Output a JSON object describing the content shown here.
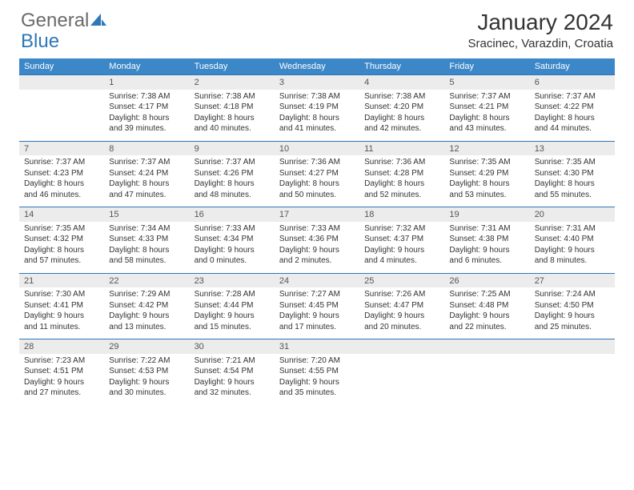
{
  "brand": {
    "part1": "General",
    "part2": "Blue"
  },
  "title": "January 2024",
  "location": "Sracinec, Varazdin, Croatia",
  "colors": {
    "header_bg": "#3b87c8",
    "rule": "#2e77b8",
    "daybar_bg": "#ececec",
    "text": "#333333",
    "logo_gray": "#6b6b6b"
  },
  "weekdays": [
    "Sunday",
    "Monday",
    "Tuesday",
    "Wednesday",
    "Thursday",
    "Friday",
    "Saturday"
  ],
  "weeks": [
    {
      "nums": [
        "",
        "1",
        "2",
        "3",
        "4",
        "5",
        "6"
      ],
      "cells": [
        {
          "empty": true
        },
        {
          "sunrise": "7:38 AM",
          "sunset": "4:17 PM",
          "dl1": "Daylight: 8 hours",
          "dl2": "and 39 minutes."
        },
        {
          "sunrise": "7:38 AM",
          "sunset": "4:18 PM",
          "dl1": "Daylight: 8 hours",
          "dl2": "and 40 minutes."
        },
        {
          "sunrise": "7:38 AM",
          "sunset": "4:19 PM",
          "dl1": "Daylight: 8 hours",
          "dl2": "and 41 minutes."
        },
        {
          "sunrise": "7:38 AM",
          "sunset": "4:20 PM",
          "dl1": "Daylight: 8 hours",
          "dl2": "and 42 minutes."
        },
        {
          "sunrise": "7:37 AM",
          "sunset": "4:21 PM",
          "dl1": "Daylight: 8 hours",
          "dl2": "and 43 minutes."
        },
        {
          "sunrise": "7:37 AM",
          "sunset": "4:22 PM",
          "dl1": "Daylight: 8 hours",
          "dl2": "and 44 minutes."
        }
      ]
    },
    {
      "nums": [
        "7",
        "8",
        "9",
        "10",
        "11",
        "12",
        "13"
      ],
      "cells": [
        {
          "sunrise": "7:37 AM",
          "sunset": "4:23 PM",
          "dl1": "Daylight: 8 hours",
          "dl2": "and 46 minutes."
        },
        {
          "sunrise": "7:37 AM",
          "sunset": "4:24 PM",
          "dl1": "Daylight: 8 hours",
          "dl2": "and 47 minutes."
        },
        {
          "sunrise": "7:37 AM",
          "sunset": "4:26 PM",
          "dl1": "Daylight: 8 hours",
          "dl2": "and 48 minutes."
        },
        {
          "sunrise": "7:36 AM",
          "sunset": "4:27 PM",
          "dl1": "Daylight: 8 hours",
          "dl2": "and 50 minutes."
        },
        {
          "sunrise": "7:36 AM",
          "sunset": "4:28 PM",
          "dl1": "Daylight: 8 hours",
          "dl2": "and 52 minutes."
        },
        {
          "sunrise": "7:35 AM",
          "sunset": "4:29 PM",
          "dl1": "Daylight: 8 hours",
          "dl2": "and 53 minutes."
        },
        {
          "sunrise": "7:35 AM",
          "sunset": "4:30 PM",
          "dl1": "Daylight: 8 hours",
          "dl2": "and 55 minutes."
        }
      ]
    },
    {
      "nums": [
        "14",
        "15",
        "16",
        "17",
        "18",
        "19",
        "20"
      ],
      "cells": [
        {
          "sunrise": "7:35 AM",
          "sunset": "4:32 PM",
          "dl1": "Daylight: 8 hours",
          "dl2": "and 57 minutes."
        },
        {
          "sunrise": "7:34 AM",
          "sunset": "4:33 PM",
          "dl1": "Daylight: 8 hours",
          "dl2": "and 58 minutes."
        },
        {
          "sunrise": "7:33 AM",
          "sunset": "4:34 PM",
          "dl1": "Daylight: 9 hours",
          "dl2": "and 0 minutes."
        },
        {
          "sunrise": "7:33 AM",
          "sunset": "4:36 PM",
          "dl1": "Daylight: 9 hours",
          "dl2": "and 2 minutes."
        },
        {
          "sunrise": "7:32 AM",
          "sunset": "4:37 PM",
          "dl1": "Daylight: 9 hours",
          "dl2": "and 4 minutes."
        },
        {
          "sunrise": "7:31 AM",
          "sunset": "4:38 PM",
          "dl1": "Daylight: 9 hours",
          "dl2": "and 6 minutes."
        },
        {
          "sunrise": "7:31 AM",
          "sunset": "4:40 PM",
          "dl1": "Daylight: 9 hours",
          "dl2": "and 8 minutes."
        }
      ]
    },
    {
      "nums": [
        "21",
        "22",
        "23",
        "24",
        "25",
        "26",
        "27"
      ],
      "cells": [
        {
          "sunrise": "7:30 AM",
          "sunset": "4:41 PM",
          "dl1": "Daylight: 9 hours",
          "dl2": "and 11 minutes."
        },
        {
          "sunrise": "7:29 AM",
          "sunset": "4:42 PM",
          "dl1": "Daylight: 9 hours",
          "dl2": "and 13 minutes."
        },
        {
          "sunrise": "7:28 AM",
          "sunset": "4:44 PM",
          "dl1": "Daylight: 9 hours",
          "dl2": "and 15 minutes."
        },
        {
          "sunrise": "7:27 AM",
          "sunset": "4:45 PM",
          "dl1": "Daylight: 9 hours",
          "dl2": "and 17 minutes."
        },
        {
          "sunrise": "7:26 AM",
          "sunset": "4:47 PM",
          "dl1": "Daylight: 9 hours",
          "dl2": "and 20 minutes."
        },
        {
          "sunrise": "7:25 AM",
          "sunset": "4:48 PM",
          "dl1": "Daylight: 9 hours",
          "dl2": "and 22 minutes."
        },
        {
          "sunrise": "7:24 AM",
          "sunset": "4:50 PM",
          "dl1": "Daylight: 9 hours",
          "dl2": "and 25 minutes."
        }
      ]
    },
    {
      "nums": [
        "28",
        "29",
        "30",
        "31",
        "",
        "",
        ""
      ],
      "cells": [
        {
          "sunrise": "7:23 AM",
          "sunset": "4:51 PM",
          "dl1": "Daylight: 9 hours",
          "dl2": "and 27 minutes."
        },
        {
          "sunrise": "7:22 AM",
          "sunset": "4:53 PM",
          "dl1": "Daylight: 9 hours",
          "dl2": "and 30 minutes."
        },
        {
          "sunrise": "7:21 AM",
          "sunset": "4:54 PM",
          "dl1": "Daylight: 9 hours",
          "dl2": "and 32 minutes."
        },
        {
          "sunrise": "7:20 AM",
          "sunset": "4:55 PM",
          "dl1": "Daylight: 9 hours",
          "dl2": "and 35 minutes."
        },
        {
          "empty": true
        },
        {
          "empty": true
        },
        {
          "empty": true
        }
      ]
    }
  ],
  "labels": {
    "sunrise": "Sunrise: ",
    "sunset": "Sunset: "
  }
}
